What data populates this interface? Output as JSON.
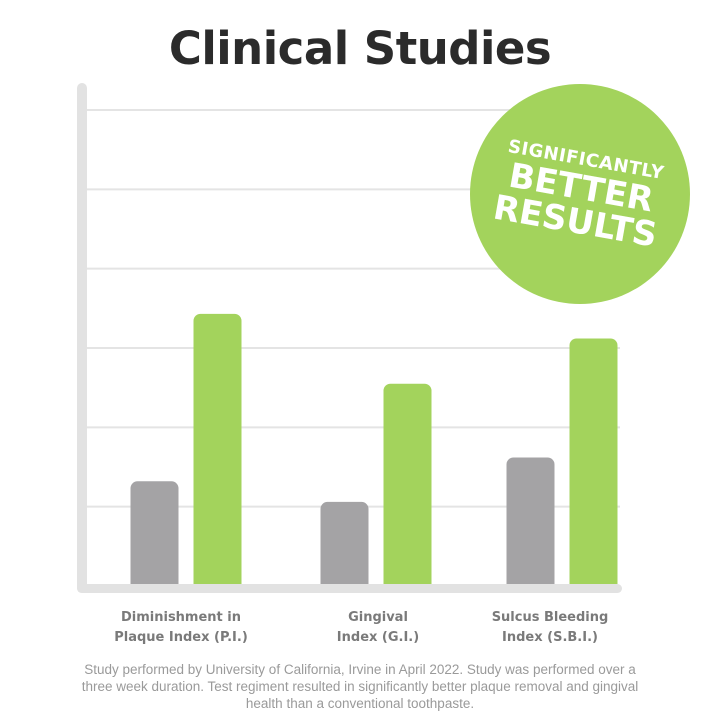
{
  "colors": {
    "control_bar": "#a4a3a5",
    "treatment_bar": "#a3d35c",
    "axis": "#e2e2e2",
    "gridline": "#e4e4e4",
    "title": "#2b2b2b",
    "category_label": "#7a7a7a",
    "footnote": "#9a9a9a"
  },
  "chart_data": {
    "type": "bar",
    "title": "Clinical Studies",
    "categories": [
      [
        "Diminishment in",
        "Plaque Index (P.I.)"
      ],
      [
        "Gingival",
        "Index (G.I.)"
      ],
      [
        "Sulcus Bleeding",
        "Index (S.B.I.)"
      ]
    ],
    "series": [
      {
        "color_key": "control_bar",
        "values": [
          1.32,
          1.06,
          1.62
        ]
      },
      {
        "color_key": "treatment_bar",
        "values": [
          3.43,
          2.55,
          3.12
        ]
      }
    ],
    "ylim": [
      0,
      6
    ],
    "gridlines": 6,
    "grid": true,
    "xlabel": "",
    "ylabel": "",
    "legend": "none"
  },
  "badge": {
    "line1": "SIGNIFICANTLY",
    "line2": "BETTER",
    "line3": "RESULTS"
  },
  "footnote": "Study performed by University of California, Irvine in April 2022. Study was performed over a three week duration. Test regiment resulted in significantly better plaque removal and gingival health than a conventional toothpaste."
}
